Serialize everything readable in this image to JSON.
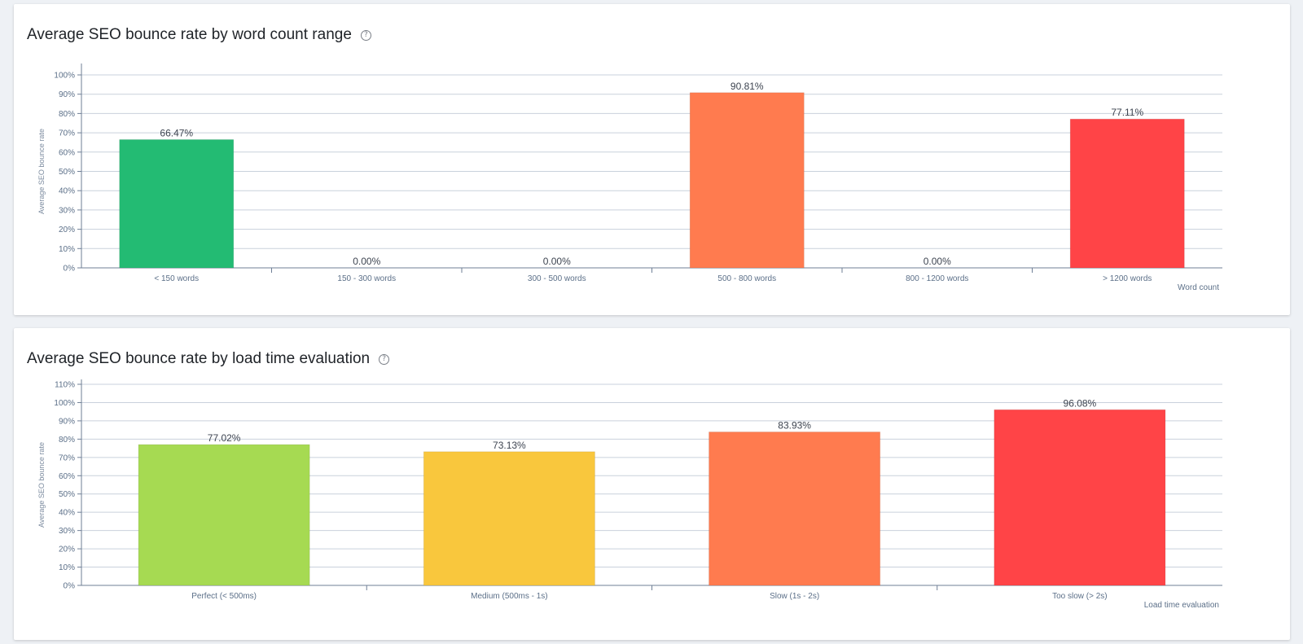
{
  "icons": {
    "help": "help-circle-icon"
  },
  "chart_data": [
    {
      "type": "bar",
      "title": "Average SEO bounce rate by word count range",
      "ylabel": "Average SEO bounce rate",
      "xlabel": "Word count",
      "categories": [
        "< 150 words",
        "150 - 300 words",
        "300 - 500 words",
        "500 - 800 words",
        "800 - 1200 words",
        "> 1200 words"
      ],
      "values": [
        66.47,
        0.0,
        0.0,
        90.81,
        0.0,
        77.11
      ],
      "value_labels": [
        "66.47%",
        "0.00%",
        "0.00%",
        "90.81%",
        "0.00%",
        "77.11%"
      ],
      "colors": [
        "#23bb73",
        "#23bb73",
        "#23bb73",
        "#ff7b4f",
        "#ff7b4f",
        "#ff4447"
      ],
      "ylim": [
        0,
        100
      ],
      "yticks": [
        0,
        10,
        20,
        30,
        40,
        50,
        60,
        70,
        80,
        90,
        100
      ],
      "ytick_labels": [
        "0%",
        "10%",
        "20%",
        "30%",
        "40%",
        "50%",
        "60%",
        "70%",
        "80%",
        "90%",
        "100%"
      ],
      "grid": true,
      "legend": "none"
    },
    {
      "type": "bar",
      "title": "Average SEO bounce rate by load time evaluation",
      "ylabel": "Average SEO bounce rate",
      "xlabel": "Load time evaluation",
      "categories": [
        "Perfect (< 500ms)",
        "Medium (500ms - 1s)",
        "Slow (1s - 2s)",
        "Too slow (> 2s)"
      ],
      "values": [
        77.02,
        73.13,
        83.93,
        96.08
      ],
      "value_labels": [
        "77.02%",
        "73.13%",
        "83.93%",
        "96.08%"
      ],
      "colors": [
        "#a6da52",
        "#f9c73d",
        "#ff7b4f",
        "#ff4447"
      ],
      "ylim": [
        0,
        110
      ],
      "yticks": [
        0,
        10,
        20,
        30,
        40,
        50,
        60,
        70,
        80,
        90,
        100,
        110
      ],
      "ytick_labels": [
        "0%",
        "10%",
        "20%",
        "30%",
        "40%",
        "50%",
        "60%",
        "70%",
        "80%",
        "90%",
        "100%",
        "110%"
      ],
      "grid": true,
      "legend": "none"
    }
  ]
}
